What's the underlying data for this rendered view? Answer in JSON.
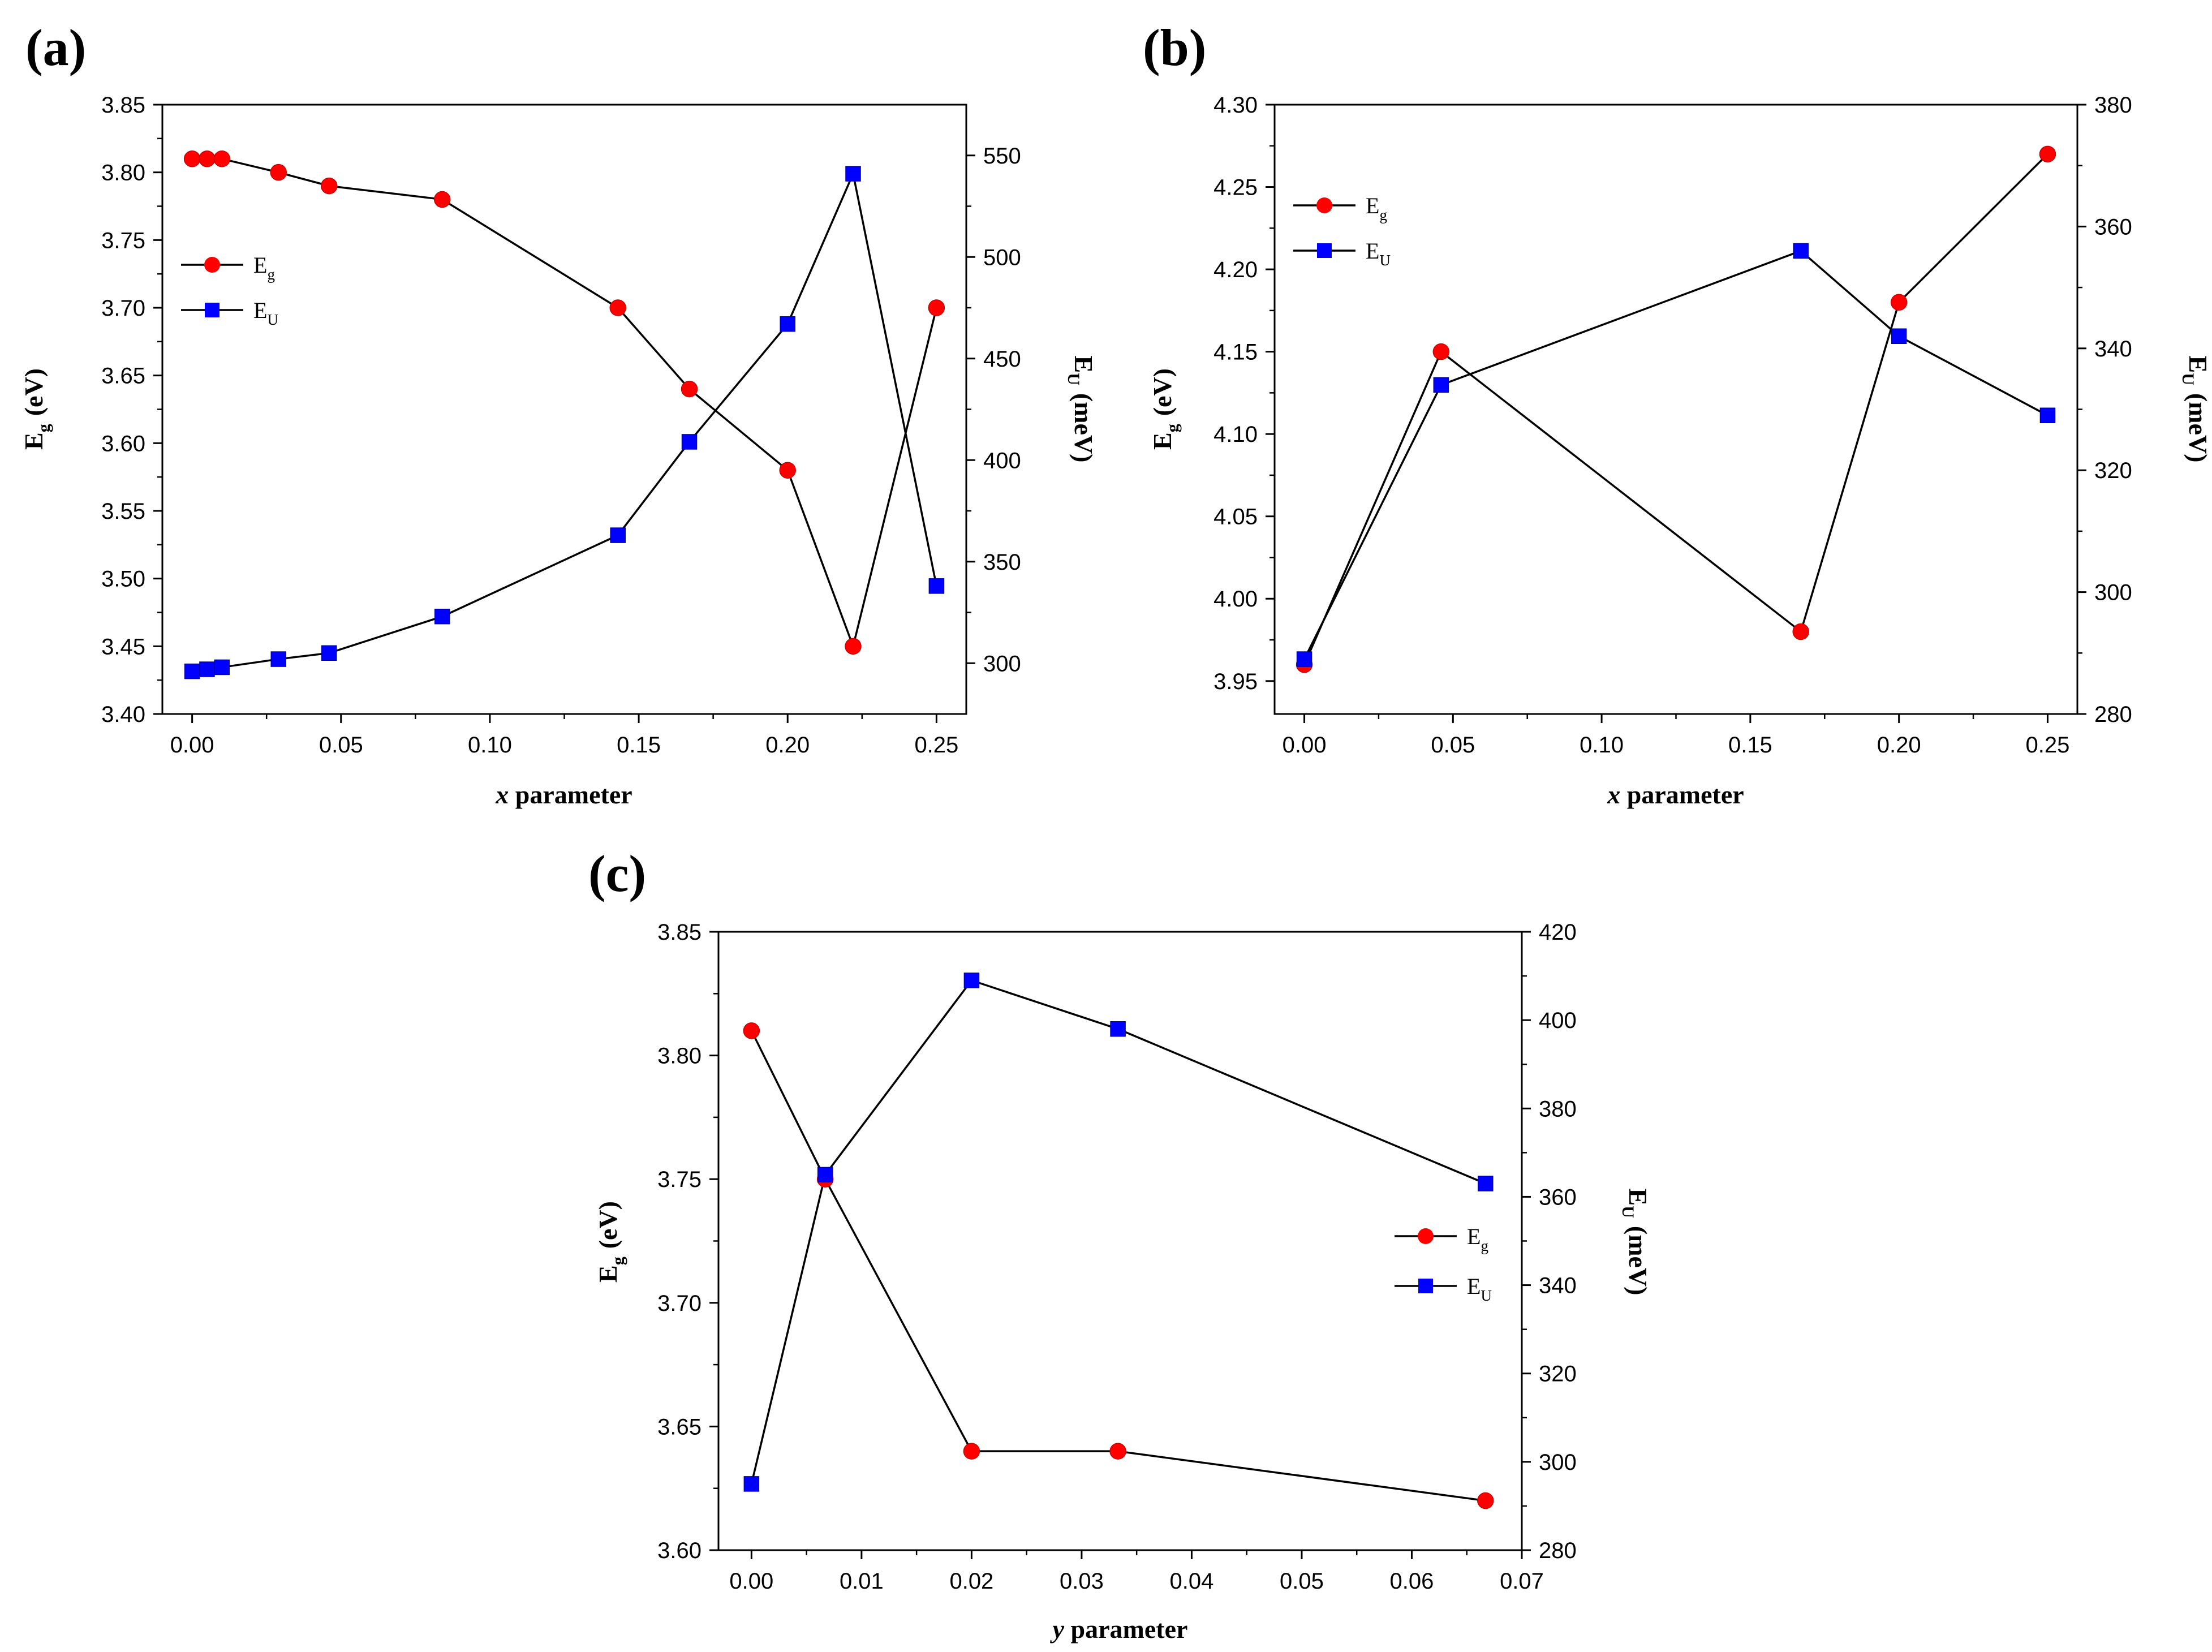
{
  "figure": {
    "background": "#ffffff",
    "colors": {
      "eg": "#ff0000",
      "eu": "#0000ff",
      "line": "#000000",
      "marker_outline": "#0000aa"
    }
  },
  "chart_data": [
    {
      "id": "a",
      "panel_label": "(a)",
      "type": "line",
      "x_title": "parameter",
      "x_title_var": "x",
      "xlim": [
        -0.01,
        0.26
      ],
      "x_ticks": [
        "0.00",
        "0.05",
        "0.10",
        "0.15",
        "0.20",
        "0.25"
      ],
      "left_axis": {
        "title_main": "E",
        "title_sub": "g",
        "title_unit": "(eV)",
        "lim": [
          3.4,
          3.85
        ],
        "ticks": [
          "3.40",
          "3.45",
          "3.50",
          "3.55",
          "3.60",
          "3.65",
          "3.70",
          "3.75",
          "3.80",
          "3.85"
        ]
      },
      "right_axis": {
        "title_main": "E",
        "title_sub": "U",
        "title_unit": "(meV)",
        "lim": [
          275,
          575
        ],
        "ticks": [
          "300",
          "350",
          "400",
          "450",
          "500",
          "550"
        ]
      },
      "legend_position": "upper-left",
      "series": [
        {
          "name": "E",
          "sub": "g",
          "axis": "left",
          "marker": "circle",
          "color": "#ff0000",
          "x": [
            0.0,
            0.005,
            0.01,
            0.029,
            0.046,
            0.084,
            0.143,
            0.167,
            0.2,
            0.222,
            0.25
          ],
          "y": [
            3.81,
            3.81,
            3.81,
            3.8,
            3.79,
            3.78,
            3.7,
            3.64,
            3.58,
            3.45,
            3.7
          ]
        },
        {
          "name": "E",
          "sub": "U",
          "axis": "right",
          "marker": "square",
          "color": "#0000ff",
          "x": [
            0.0,
            0.005,
            0.01,
            0.029,
            0.046,
            0.084,
            0.143,
            0.167,
            0.2,
            0.222,
            0.25
          ],
          "y": [
            296,
            297,
            298,
            302,
            305,
            323,
            363,
            409,
            467,
            541,
            338
          ]
        }
      ]
    },
    {
      "id": "b",
      "panel_label": "(b)",
      "type": "line",
      "x_title": "parameter",
      "x_title_var": "x",
      "xlim": [
        -0.01,
        0.26
      ],
      "x_ticks": [
        "0.00",
        "0.05",
        "0.10",
        "0.15",
        "0.20",
        "0.25"
      ],
      "left_axis": {
        "title_main": "E",
        "title_sub": "g",
        "title_unit": "(eV)",
        "lim": [
          3.93,
          4.3
        ],
        "ticks": [
          "3.95",
          "4.00",
          "4.05",
          "4.10",
          "4.15",
          "4.20",
          "4.25",
          "4.30"
        ]
      },
      "right_axis": {
        "title_main": "E",
        "title_sub": "U",
        "title_unit": "(meV)",
        "lim": [
          280,
          380
        ],
        "ticks": [
          "280",
          "300",
          "320",
          "340",
          "360",
          "380"
        ]
      },
      "legend_position": "upper-left",
      "series": [
        {
          "name": "E",
          "sub": "g",
          "axis": "left",
          "marker": "circle",
          "color": "#ff0000",
          "x": [
            0.0,
            0.046,
            0.167,
            0.2,
            0.25
          ],
          "y": [
            3.96,
            4.15,
            3.98,
            4.18,
            4.27
          ]
        },
        {
          "name": "E",
          "sub": "U",
          "axis": "right",
          "marker": "square",
          "color": "#0000ff",
          "x": [
            0.0,
            0.046,
            0.167,
            0.2,
            0.25
          ],
          "y": [
            289,
            334,
            356,
            342,
            329
          ]
        }
      ]
    },
    {
      "id": "c",
      "panel_label": "(c)",
      "type": "line",
      "x_title": "parameter",
      "x_title_var": "y",
      "xlim": [
        -0.003,
        0.07
      ],
      "x_ticks": [
        "0.00",
        "0.01",
        "0.02",
        "0.03",
        "0.04",
        "0.05",
        "0.06",
        "0.07"
      ],
      "left_axis": {
        "title_main": "E",
        "title_sub": "g",
        "title_unit": "(eV)",
        "lim": [
          3.6,
          3.85
        ],
        "ticks": [
          "3.60",
          "3.65",
          "3.70",
          "3.75",
          "3.80",
          "3.85"
        ]
      },
      "right_axis": {
        "title_main": "E",
        "title_sub": "U",
        "title_unit": "(meV)",
        "lim": [
          280,
          420
        ],
        "ticks": [
          "280",
          "300",
          "320",
          "340",
          "360",
          "380",
          "400",
          "420"
        ]
      },
      "legend_position": "right",
      "series": [
        {
          "name": "E",
          "sub": "g",
          "axis": "left",
          "marker": "circle",
          "color": "#ff0000",
          "x": [
            0.0,
            0.0067,
            0.02,
            0.0333,
            0.0667
          ],
          "y": [
            3.81,
            3.75,
            3.64,
            3.64,
            3.62
          ]
        },
        {
          "name": "E",
          "sub": "U",
          "axis": "right",
          "marker": "square",
          "color": "#0000ff",
          "x": [
            0.0,
            0.0067,
            0.02,
            0.0333,
            0.0667
          ],
          "y": [
            295,
            365,
            409,
            398,
            363
          ]
        }
      ]
    }
  ]
}
